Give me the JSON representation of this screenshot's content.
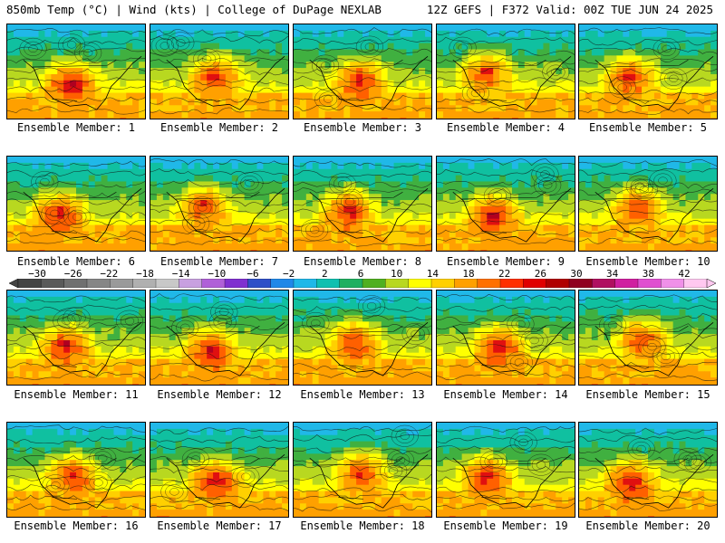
{
  "header": {
    "left": "850mb Temp (°C) | Wind (kts) | College of DuPage NEXLAB",
    "right": "12Z GEFS | F372 Valid: 00Z TUE JUN 24 2025"
  },
  "panels": [
    {
      "label": "Ensemble Member: 1"
    },
    {
      "label": "Ensemble Member: 2"
    },
    {
      "label": "Ensemble Member: 3"
    },
    {
      "label": "Ensemble Member: 4"
    },
    {
      "label": "Ensemble Member: 5"
    },
    {
      "label": "Ensemble Member: 6"
    },
    {
      "label": "Ensemble Member: 7"
    },
    {
      "label": "Ensemble Member: 8"
    },
    {
      "label": "Ensemble Member: 9"
    },
    {
      "label": "Ensemble Member: 10"
    },
    {
      "label": "Ensemble Member: 11"
    },
    {
      "label": "Ensemble Member: 12"
    },
    {
      "label": "Ensemble Member: 13"
    },
    {
      "label": "Ensemble Member: 14"
    },
    {
      "label": "Ensemble Member: 15"
    },
    {
      "label": "Ensemble Member: 16"
    },
    {
      "label": "Ensemble Member: 17"
    },
    {
      "label": "Ensemble Member: 18"
    },
    {
      "label": "Ensemble Member: 19"
    },
    {
      "label": "Ensemble Member: 20"
    }
  ],
  "colorbar": {
    "labels": [
      "−30",
      "−26",
      "−22",
      "−18",
      "−14",
      "−10",
      "−6",
      "−2",
      "2",
      "6",
      "10",
      "14",
      "18",
      "22",
      "26",
      "30",
      "34",
      "38",
      "42"
    ],
    "colors": [
      "#444444",
      "#5a5a5a",
      "#707070",
      "#868686",
      "#9a9a9a",
      "#b0b0b0",
      "#c8c8c8",
      "#c8a0e0",
      "#b060d8",
      "#8030d0",
      "#3050c8",
      "#2088e8",
      "#20b8e8",
      "#10c0b0",
      "#20b060",
      "#50b020",
      "#b8d820",
      "#ffff00",
      "#ffd000",
      "#ffa000",
      "#ff7000",
      "#ff3000",
      "#e00000",
      "#b00000",
      "#900020",
      "#b01060",
      "#d020a0",
      "#e050d0",
      "#f090e8",
      "#ffc8f0"
    ]
  }
}
